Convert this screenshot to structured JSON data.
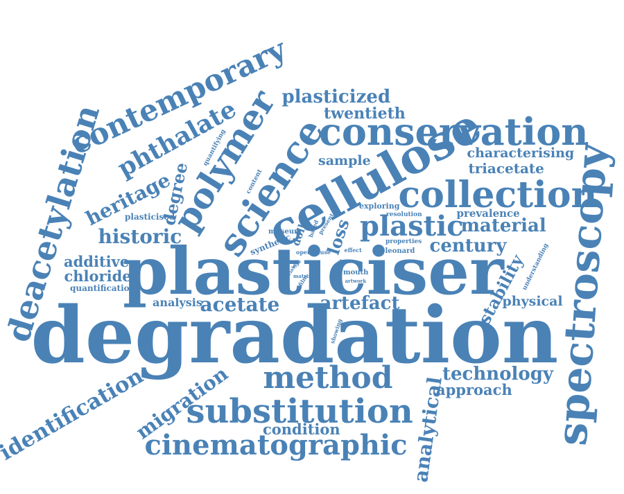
{
  "colors": {
    "word": "#4a82b6",
    "background": "#ffffff"
  },
  "words": [
    "degradation",
    "plasticiser",
    "cellulose",
    "spectroscopy",
    "conservation",
    "collection",
    "science",
    "polymer",
    "contemporary",
    "deacetylation",
    "substitution",
    "cinematographic",
    "method",
    "plastic",
    "phthalate",
    "identification",
    "heritage",
    "historic",
    "migration",
    "acetate",
    "artefact",
    "material",
    "century",
    "analytical",
    "technology",
    "plasticized",
    "twentieth",
    "degree",
    "stability",
    "additive",
    "chloride",
    "condition",
    "approach",
    "characterising",
    "triacetate",
    "sample",
    "physical",
    "loss",
    "analysis",
    "prevalence",
    "quantification",
    "plasticised",
    "synthetic",
    "doll",
    "museum",
    "exploring",
    "resolution",
    "content",
    "quantifying",
    "understanding",
    "properties",
    "leonard",
    "based",
    "present",
    "open cause",
    "effect",
    "mouth",
    "artwork",
    "tooth",
    "showing",
    "related",
    "type",
    "matrix",
    "film"
  ]
}
